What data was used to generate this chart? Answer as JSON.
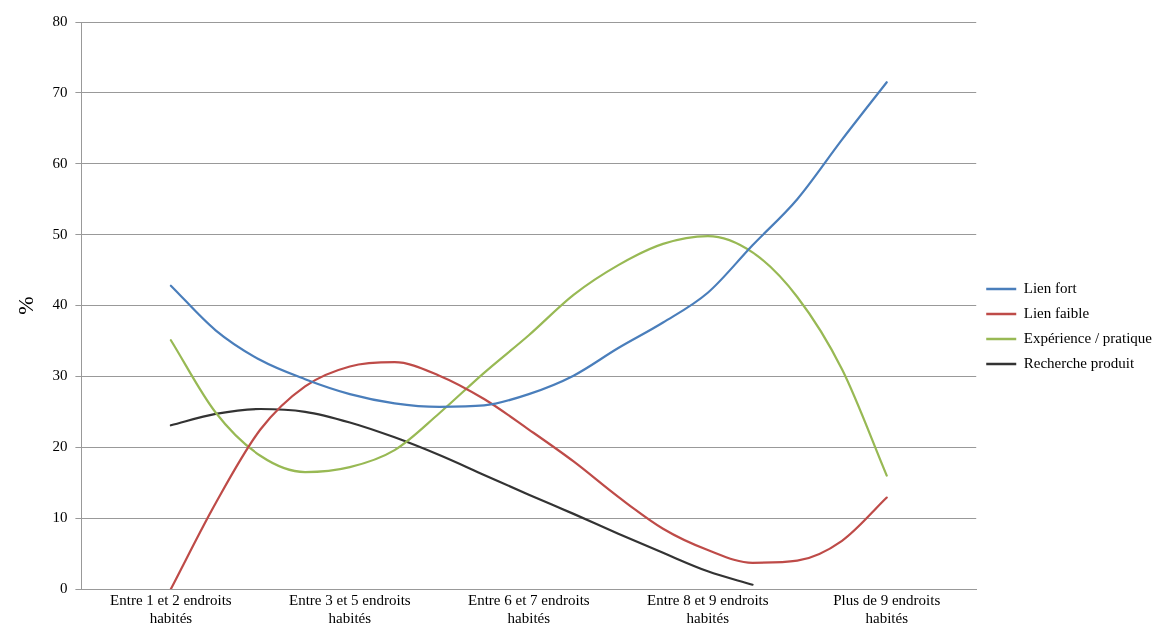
{
  "chart_data": {
    "type": "line",
    "ylabel": "%",
    "categories": [
      null,
      null,
      "Entre 1 et 2 endroits habités",
      null,
      null,
      null,
      "Entre 3 et 5 endroits habités",
      null,
      null,
      null,
      "Entre 6 et 7 endroits habités",
      null,
      null,
      null,
      "Entre 8 et 9 endroits habités",
      null,
      null,
      null,
      "Plus de 9 endroits habités",
      null,
      null
    ],
    "ylim": [
      0,
      80
    ],
    "yticks": [
      0,
      10,
      20,
      30,
      40,
      50,
      60,
      70,
      80
    ],
    "grid": "y",
    "legend": "right",
    "marker": "none",
    "series": [
      {
        "name": "Lien fort",
        "color": "#4a7ebb",
        "values": [
          null,
          null,
          42.8,
          36.5,
          32.3,
          29.6,
          27.5,
          26.2,
          25.7,
          25.9,
          27.5,
          30.1,
          34,
          37.6,
          41.8,
          48.5,
          55,
          63.4,
          71.5,
          null,
          null
        ]
      },
      {
        "name": "Lien faible",
        "color": "#be4b48",
        "values": [
          null,
          null,
          0,
          12.1,
          22.5,
          28.6,
          31.4,
          32,
          30.1,
          26.8,
          22.5,
          18,
          13,
          8.5,
          5.5,
          3.7,
          4,
          6.8,
          12.9,
          null,
          null
        ]
      },
      {
        "name": "Expérience / pratique",
        "color": "#98b954",
        "values": [
          null,
          null,
          35.1,
          24.9,
          18.8,
          16.5,
          17.2,
          19.6,
          24.8,
          30.5,
          35.8,
          41.5,
          45.7,
          48.7,
          49.8,
          47.5,
          41.2,
          31,
          16,
          null,
          null
        ]
      },
      {
        "name": "Recherche produit",
        "color": "#333333",
        "values": [
          null,
          null,
          23.1,
          24.7,
          25.4,
          25,
          23.5,
          21.4,
          18.9,
          16.1,
          13.3,
          10.6,
          7.8,
          5.1,
          2.5,
          0.6,
          null,
          null,
          null,
          null,
          null
        ]
      }
    ]
  }
}
